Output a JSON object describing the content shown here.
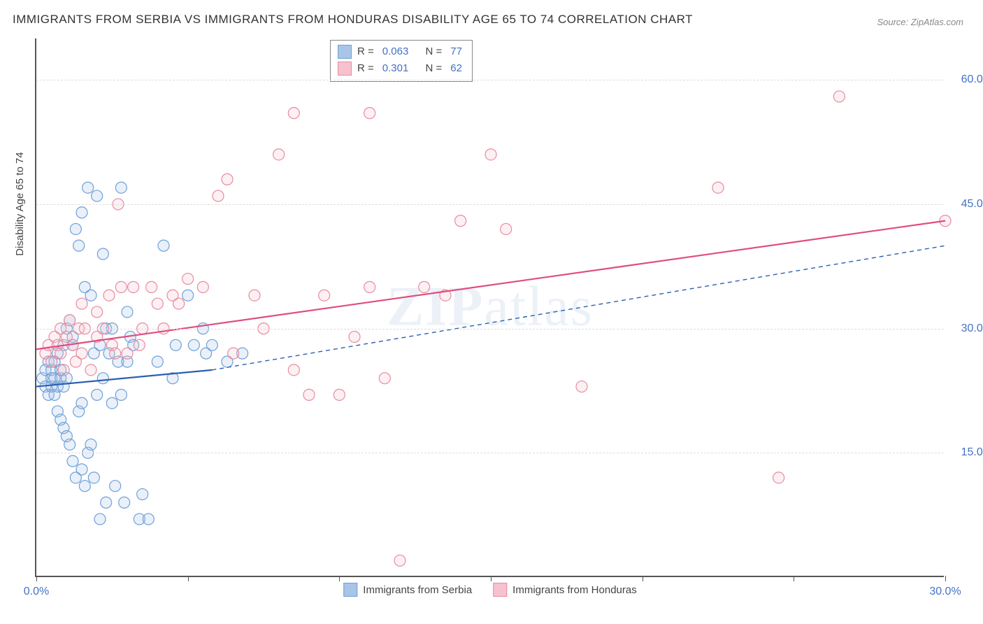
{
  "title": "IMMIGRANTS FROM SERBIA VS IMMIGRANTS FROM HONDURAS DISABILITY AGE 65 TO 74 CORRELATION CHART",
  "source": "Source: ZipAtlas.com",
  "y_axis_label": "Disability Age 65 to 74",
  "watermark_a": "ZIP",
  "watermark_b": "atlas",
  "chart": {
    "type": "scatter",
    "xlim": [
      0,
      30
    ],
    "ylim": [
      0,
      65
    ],
    "x_ticks": [
      0,
      5,
      10,
      15,
      20,
      25,
      30
    ],
    "x_tick_labels": {
      "0": "0.0%",
      "30": "30.0%"
    },
    "y_ticks": [
      15,
      30,
      45,
      60
    ],
    "y_tick_labels": {
      "15": "15.0%",
      "30": "30.0%",
      "45": "45.0%",
      "60": "60.0%"
    },
    "background_color": "#ffffff",
    "grid_color": "#dddddd",
    "axis_color": "#555555",
    "tick_label_color": "#4472c4",
    "series": [
      {
        "name": "Immigrants from Serbia",
        "color_fill": "#a8c5e8",
        "color_stroke": "#6fa0d8",
        "marker_radius": 8,
        "R": "0.063",
        "N": "77",
        "trend": {
          "x1": 0,
          "y1": 23,
          "x2_solid": 5.8,
          "y2_solid": 25,
          "x2_dash": 30,
          "y2_dash": 40,
          "color": "#2c5fb0",
          "width": 2.2
        },
        "points": [
          [
            0.2,
            24
          ],
          [
            0.3,
            23
          ],
          [
            0.3,
            25
          ],
          [
            0.4,
            26
          ],
          [
            0.4,
            22
          ],
          [
            0.5,
            24
          ],
          [
            0.5,
            23
          ],
          [
            0.5,
            25
          ],
          [
            0.6,
            24
          ],
          [
            0.6,
            26
          ],
          [
            0.6,
            22
          ],
          [
            0.7,
            23
          ],
          [
            0.7,
            27
          ],
          [
            0.7,
            20
          ],
          [
            0.8,
            24
          ],
          [
            0.8,
            25
          ],
          [
            0.8,
            19
          ],
          [
            0.9,
            23
          ],
          [
            0.9,
            28
          ],
          [
            0.9,
            18
          ],
          [
            1.0,
            30
          ],
          [
            1.0,
            17
          ],
          [
            1.0,
            24
          ],
          [
            1.1,
            31
          ],
          [
            1.1,
            16
          ],
          [
            1.2,
            28
          ],
          [
            1.2,
            29
          ],
          [
            1.2,
            14
          ],
          [
            1.3,
            42
          ],
          [
            1.3,
            12
          ],
          [
            1.4,
            40
          ],
          [
            1.4,
            20
          ],
          [
            1.5,
            44
          ],
          [
            1.5,
            13
          ],
          [
            1.5,
            21
          ],
          [
            1.6,
            35
          ],
          [
            1.6,
            11
          ],
          [
            1.7,
            47
          ],
          [
            1.7,
            15
          ],
          [
            1.8,
            34
          ],
          [
            1.8,
            16
          ],
          [
            1.9,
            27
          ],
          [
            1.9,
            12
          ],
          [
            2.0,
            46
          ],
          [
            2.0,
            22
          ],
          [
            2.1,
            7
          ],
          [
            2.1,
            28
          ],
          [
            2.2,
            39
          ],
          [
            2.2,
            24
          ],
          [
            2.3,
            9
          ],
          [
            2.3,
            30
          ],
          [
            2.4,
            27
          ],
          [
            2.5,
            21
          ],
          [
            2.5,
            30
          ],
          [
            2.6,
            11
          ],
          [
            2.7,
            26
          ],
          [
            2.8,
            47
          ],
          [
            2.8,
            22
          ],
          [
            2.9,
            9
          ],
          [
            3.0,
            32
          ],
          [
            3.0,
            26
          ],
          [
            3.1,
            29
          ],
          [
            3.2,
            28
          ],
          [
            3.4,
            7
          ],
          [
            3.5,
            10
          ],
          [
            3.7,
            7
          ],
          [
            4.0,
            26
          ],
          [
            4.2,
            40
          ],
          [
            4.5,
            24
          ],
          [
            4.6,
            28
          ],
          [
            5.0,
            34
          ],
          [
            5.2,
            28
          ],
          [
            5.5,
            30
          ],
          [
            5.6,
            27
          ],
          [
            5.8,
            28
          ],
          [
            6.3,
            26
          ],
          [
            6.8,
            27
          ]
        ]
      },
      {
        "name": "Immigrants from Honduras",
        "color_fill": "#f5c2cd",
        "color_stroke": "#e88ba2",
        "marker_radius": 8,
        "R": "0.301",
        "N": "62",
        "trend": {
          "x1": 0,
          "y1": 27.5,
          "x2_solid": 30,
          "y2_solid": 43,
          "color": "#e04c7f",
          "width": 2.2
        },
        "points": [
          [
            0.3,
            27
          ],
          [
            0.4,
            28
          ],
          [
            0.5,
            26
          ],
          [
            0.6,
            29
          ],
          [
            0.7,
            28
          ],
          [
            0.8,
            27
          ],
          [
            0.8,
            30
          ],
          [
            0.9,
            25
          ],
          [
            1.0,
            29
          ],
          [
            1.1,
            31
          ],
          [
            1.2,
            28
          ],
          [
            1.3,
            26
          ],
          [
            1.4,
            30
          ],
          [
            1.5,
            27
          ],
          [
            1.5,
            33
          ],
          [
            1.6,
            30
          ],
          [
            1.8,
            25
          ],
          [
            2.0,
            32
          ],
          [
            2.0,
            29
          ],
          [
            2.2,
            30
          ],
          [
            2.4,
            34
          ],
          [
            2.5,
            28
          ],
          [
            2.6,
            27
          ],
          [
            2.7,
            45
          ],
          [
            2.8,
            35
          ],
          [
            3.0,
            27
          ],
          [
            3.2,
            35
          ],
          [
            3.4,
            28
          ],
          [
            3.5,
            30
          ],
          [
            3.8,
            35
          ],
          [
            4.0,
            33
          ],
          [
            4.2,
            30
          ],
          [
            4.5,
            34
          ],
          [
            4.7,
            33
          ],
          [
            5.0,
            36
          ],
          [
            5.5,
            35
          ],
          [
            6.0,
            46
          ],
          [
            7.2,
            34
          ],
          [
            7.5,
            30
          ],
          [
            8.5,
            56
          ],
          [
            8.0,
            51
          ],
          [
            8.5,
            25
          ],
          [
            9.0,
            22
          ],
          [
            9.5,
            34
          ],
          [
            10.0,
            22
          ],
          [
            10.5,
            29
          ],
          [
            11.0,
            56
          ],
          [
            11.0,
            35
          ],
          [
            11.5,
            24
          ],
          [
            12.0,
            2
          ],
          [
            12.8,
            35
          ],
          [
            13.5,
            34
          ],
          [
            14.0,
            43
          ],
          [
            15.0,
            51
          ],
          [
            15.5,
            42
          ],
          [
            18.0,
            23
          ],
          [
            22.5,
            47
          ],
          [
            24.5,
            12
          ],
          [
            26.5,
            58
          ],
          [
            30.0,
            43
          ],
          [
            6.3,
            48
          ],
          [
            6.5,
            27
          ]
        ]
      }
    ]
  },
  "stats_legend": {
    "R_label": "R =",
    "N_label": "N ="
  },
  "bottom_legend": [
    {
      "label": "Immigrants from Serbia",
      "fill": "#a8c5e8",
      "stroke": "#6fa0d8"
    },
    {
      "label": "Immigrants from Honduras",
      "fill": "#f5c2cd",
      "stroke": "#e88ba2"
    }
  ]
}
